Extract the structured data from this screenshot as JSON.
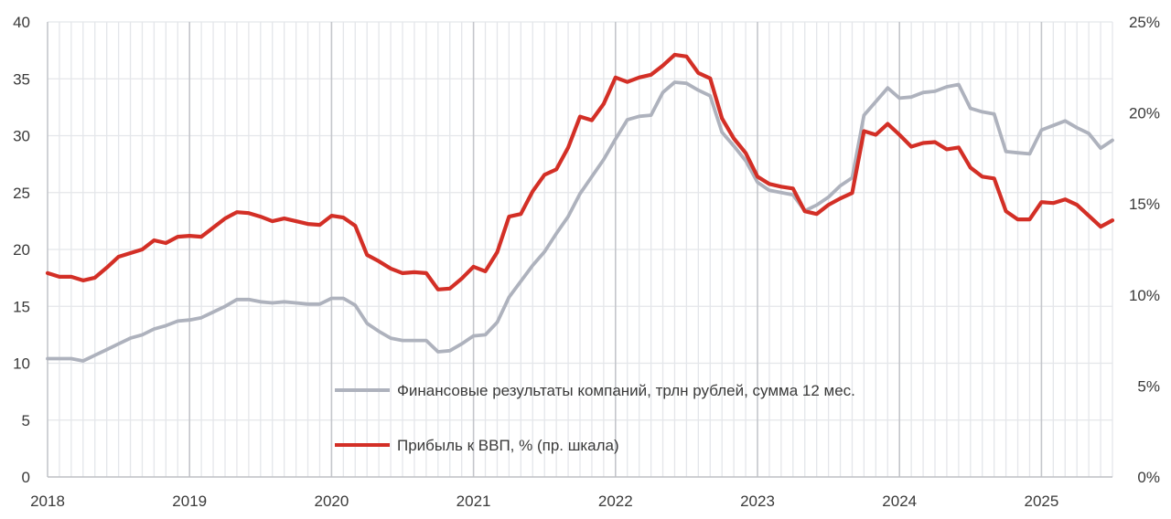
{
  "chart_data": {
    "type": "line",
    "title": "",
    "xlabel": "",
    "ylabel": "",
    "x_ticks": [
      "2018",
      "2019",
      "2020",
      "2021",
      "2022",
      "2023",
      "2024",
      "2025"
    ],
    "xlim": [
      2018.0,
      2025.5
    ],
    "y_left": {
      "ticks": [
        "0",
        "5",
        "10",
        "15",
        "20",
        "25",
        "30",
        "35",
        "40"
      ],
      "ylim": [
        0,
        40
      ]
    },
    "y_right": {
      "ticks": [
        "0%",
        "5%",
        "10%",
        "15%",
        "20%",
        "25%"
      ],
      "ylim": [
        0,
        25
      ]
    },
    "grid": "vertical-monthly-and-horizontal",
    "legend_placement": "center-bottom",
    "series": [
      {
        "name": "Финансовые результаты компаний, трлн рублей, сумма 12 мес.",
        "axis": "left",
        "color": "#aeb2bd",
        "x": [
          2018.0,
          2018.083,
          2018.167,
          2018.25,
          2018.333,
          2018.417,
          2018.5,
          2018.583,
          2018.667,
          2018.75,
          2018.833,
          2018.917,
          2019.0,
          2019.083,
          2019.167,
          2019.25,
          2019.333,
          2019.417,
          2019.5,
          2019.583,
          2019.667,
          2019.75,
          2019.833,
          2019.917,
          2020.0,
          2020.083,
          2020.167,
          2020.25,
          2020.333,
          2020.417,
          2020.5,
          2020.583,
          2020.667,
          2020.75,
          2020.833,
          2020.917,
          2021.0,
          2021.083,
          2021.167,
          2021.25,
          2021.333,
          2021.417,
          2021.5,
          2021.583,
          2021.667,
          2021.75,
          2021.833,
          2021.917,
          2022.0,
          2022.083,
          2022.167,
          2022.25,
          2022.333,
          2022.417,
          2022.5,
          2022.583,
          2022.667,
          2022.75,
          2022.833,
          2022.917,
          2023.0,
          2023.083,
          2023.167,
          2023.25,
          2023.333,
          2023.417,
          2023.5,
          2023.583,
          2023.667,
          2023.75,
          2023.833,
          2023.917,
          2024.0,
          2024.083,
          2024.167,
          2024.25,
          2024.333,
          2024.417,
          2024.5,
          2024.583,
          2024.667,
          2024.75,
          2024.833,
          2024.917,
          2025.0,
          2025.083,
          2025.167,
          2025.25,
          2025.333,
          2025.417,
          2025.5
        ],
        "y": [
          10.4,
          10.4,
          10.4,
          10.2,
          10.7,
          11.2,
          11.7,
          12.2,
          12.5,
          13.0,
          13.3,
          13.7,
          13.8,
          14.0,
          14.5,
          15.0,
          15.6,
          15.6,
          15.4,
          15.3,
          15.4,
          15.3,
          15.2,
          15.2,
          15.7,
          15.7,
          15.1,
          13.5,
          12.8,
          12.2,
          12.0,
          12.0,
          12.0,
          11.0,
          11.1,
          11.7,
          12.4,
          12.5,
          13.6,
          15.8,
          17.2,
          18.6,
          19.8,
          21.4,
          22.9,
          24.9,
          26.4,
          27.9,
          29.7,
          31.4,
          31.7,
          31.8,
          33.8,
          34.7,
          34.6,
          34.0,
          33.5,
          30.3,
          29.1,
          27.8,
          25.9,
          25.2,
          25.0,
          24.8,
          23.4,
          23.9,
          24.6,
          25.6,
          26.3,
          31.8,
          33.0,
          34.2,
          33.3,
          33.4,
          33.8,
          33.9,
          34.3,
          34.5,
          32.4,
          32.1,
          31.9,
          28.6,
          28.5,
          28.4,
          30.5,
          30.9,
          31.3,
          30.7,
          30.2,
          28.9,
          29.6
        ]
      },
      {
        "name": "Прибыль к ВВП, % (пр. шкала)",
        "axis": "right",
        "color": "#d32f26",
        "x": [
          2018.0,
          2018.083,
          2018.167,
          2018.25,
          2018.333,
          2018.417,
          2018.5,
          2018.583,
          2018.667,
          2018.75,
          2018.833,
          2018.917,
          2019.0,
          2019.083,
          2019.167,
          2019.25,
          2019.333,
          2019.417,
          2019.5,
          2019.583,
          2019.667,
          2019.75,
          2019.833,
          2019.917,
          2020.0,
          2020.083,
          2020.167,
          2020.25,
          2020.333,
          2020.417,
          2020.5,
          2020.583,
          2020.667,
          2020.75,
          2020.833,
          2020.917,
          2021.0,
          2021.083,
          2021.167,
          2021.25,
          2021.333,
          2021.417,
          2021.5,
          2021.583,
          2021.667,
          2021.75,
          2021.833,
          2021.917,
          2022.0,
          2022.083,
          2022.167,
          2022.25,
          2022.333,
          2022.417,
          2022.5,
          2022.583,
          2022.667,
          2022.75,
          2022.833,
          2022.917,
          2023.0,
          2023.083,
          2023.167,
          2023.25,
          2023.333,
          2023.417,
          2023.5,
          2023.583,
          2023.667,
          2023.75,
          2023.833,
          2023.917,
          2024.0,
          2024.083,
          2024.167,
          2024.25,
          2024.333,
          2024.417,
          2024.5,
          2024.583,
          2024.667,
          2024.75,
          2024.833,
          2024.917,
          2025.0,
          2025.083,
          2025.167,
          2025.25,
          2025.333,
          2025.417,
          2025.5
        ],
        "y": [
          11.2,
          11.0,
          11.0,
          10.8,
          10.95,
          11.5,
          12.1,
          12.3,
          12.5,
          13.0,
          12.85,
          13.2,
          13.25,
          13.2,
          13.7,
          14.2,
          14.55,
          14.5,
          14.3,
          14.05,
          14.2,
          14.05,
          13.9,
          13.85,
          14.35,
          14.25,
          13.8,
          12.2,
          11.85,
          11.45,
          11.2,
          11.25,
          11.2,
          10.3,
          10.35,
          10.9,
          11.55,
          11.3,
          12.35,
          14.3,
          14.45,
          15.7,
          16.6,
          16.9,
          18.1,
          19.8,
          19.6,
          20.5,
          21.95,
          21.7,
          21.95,
          22.1,
          22.6,
          23.2,
          23.1,
          22.2,
          21.9,
          19.7,
          18.6,
          17.8,
          16.5,
          16.1,
          15.95,
          15.85,
          14.6,
          14.45,
          14.95,
          15.3,
          15.6,
          19.0,
          18.8,
          19.4,
          18.8,
          18.15,
          18.35,
          18.4,
          18.0,
          18.1,
          17.0,
          16.5,
          16.4,
          14.6,
          14.15,
          14.15,
          15.1,
          15.05,
          15.25,
          14.95,
          14.35,
          13.75,
          14.1
        ]
      }
    ]
  }
}
